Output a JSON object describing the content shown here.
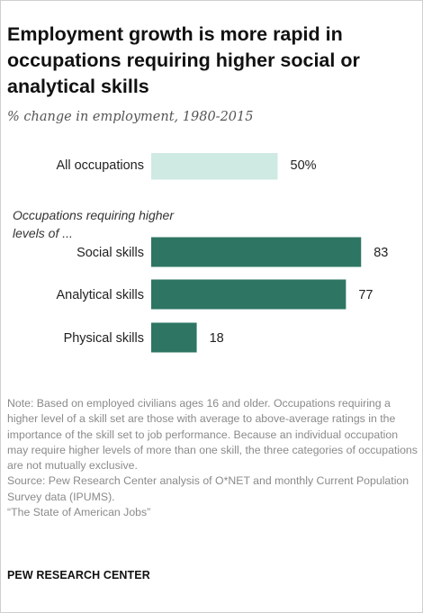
{
  "title": "Employment growth is more rapid in occupations requiring higher social or analytical skills",
  "subtitle": "% change in employment, 1980-2015",
  "group_label": "Occupations requiring higher levels of ...",
  "note": "Note: Based on employed civilians ages 16 and older. Occupations requiring a higher level of a skill set are those with average to above-average ratings in the importance of the skill set to job performance. Because an individual occupation may require higher levels of more than one skill, the three categories of occupations are not mutually exclusive.",
  "source": "Source: Pew Research Center analysis of O*NET and monthly Current Population Survey data (IPUMS).",
  "report": "“The State of American Jobs”",
  "brand": "PEW RESEARCH CENTER",
  "colors": {
    "all": "#cfe9e3",
    "skills": "#2e7563"
  },
  "chart_data": {
    "type": "bar",
    "orientation": "horizontal",
    "categories": [
      "All occupations",
      "Social skills",
      "Analytical skills",
      "Physical skills"
    ],
    "values": [
      50,
      83,
      77,
      18
    ],
    "value_labels": [
      "50%",
      "83",
      "77",
      "18"
    ],
    "xlim": [
      0,
      100
    ]
  }
}
